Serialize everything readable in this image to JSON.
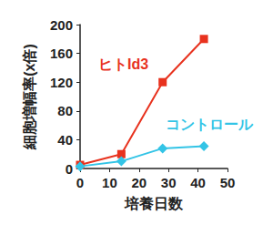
{
  "chart_data": {
    "type": "line",
    "x_label": "培養日数",
    "y_label": "細胞増幅率(x倍)",
    "xlim": [
      0,
      50
    ],
    "xticks": [
      0,
      10,
      20,
      30,
      40,
      50
    ],
    "ylim": [
      0,
      200
    ],
    "yticks": [
      0,
      40,
      80,
      120,
      160,
      200
    ],
    "grid": false,
    "series": [
      {
        "name": "ヒトId3",
        "color": "#e8321e",
        "marker": "square",
        "x": [
          0,
          14,
          28,
          42
        ],
        "values": [
          5,
          20,
          120,
          180
        ]
      },
      {
        "name": "コントロール",
        "color": "#33c4e6",
        "marker": "diamond",
        "x": [
          0,
          14,
          28,
          42
        ],
        "values": [
          3,
          10,
          28,
          31
        ]
      }
    ]
  }
}
